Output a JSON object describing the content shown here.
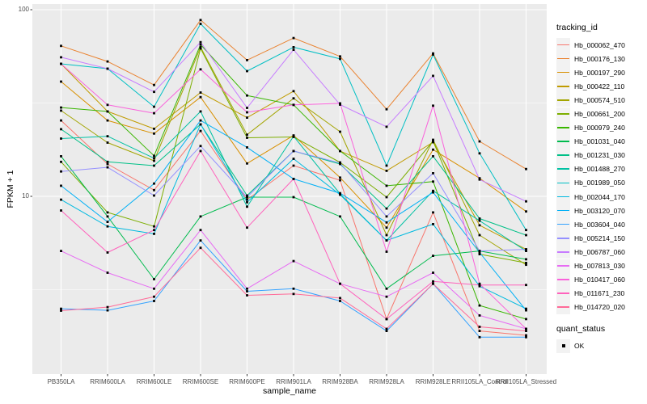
{
  "chart_data": {
    "type": "line",
    "title": "",
    "xlabel": "sample_name",
    "ylabel": "FPKM + 1",
    "y_scale": "log10",
    "ylim": [
      1.12,
      107
    ],
    "y_ticks": [
      100,
      10
    ],
    "y_tick_labels": [
      "100",
      "10"
    ],
    "y_minor_gridlines": [
      31.62,
      3.162
    ],
    "grid": true,
    "legend_position": "right",
    "categories": [
      "PB350LA",
      "RRIM600LA",
      "RRIM600LE",
      "RRIM600SE",
      "RRIM600PE",
      "RRIM901LA",
      "RRIM928BA",
      "RRIM928LA",
      "RRIM928LE",
      "RRII105LA_Control",
      "RRII105LA_Stressed"
    ],
    "series": [
      {
        "name": "Hb_000062_470",
        "color": "#F8766D",
        "values": [
          25.5,
          14.9,
          10.8,
          22.4,
          9.6,
          14.6,
          12.2,
          2.2,
          8.2,
          1.9,
          1.8
        ]
      },
      {
        "name": "Hb_000176_130",
        "color": "#EA8331",
        "values": [
          64.0,
          52.8,
          39.5,
          88.0,
          53.7,
          70.5,
          56.2,
          29.3,
          58.3,
          19.7,
          14.0
        ]
      },
      {
        "name": "Hb_000197_290",
        "color": "#D89000",
        "values": [
          41.2,
          25.5,
          21.7,
          34.0,
          15.0,
          21.2,
          12.6,
          6.8,
          17.8,
          12.5,
          8.3
        ]
      },
      {
        "name": "Hb_000422_110",
        "color": "#C09B00",
        "values": [
          51.3,
          28.5,
          23.0,
          36.0,
          26.4,
          36.6,
          17.5,
          13.7,
          19.5,
          7.0,
          5.2
        ]
      },
      {
        "name": "Hb_000574_510",
        "color": "#A3A500",
        "values": [
          28.8,
          19.4,
          15.5,
          63.0,
          21.4,
          33.5,
          22.2,
          6.2,
          20.1,
          6.2,
          4.3
        ]
      },
      {
        "name": "Hb_000661_200",
        "color": "#7CAE00",
        "values": [
          15.3,
          8.2,
          6.9,
          62.0,
          20.6,
          20.8,
          15.2,
          9.9,
          19.8,
          4.9,
          4.4
        ]
      },
      {
        "name": "Hb_000979_240",
        "color": "#39B600",
        "values": [
          29.9,
          28.5,
          16.5,
          65.0,
          34.7,
          30.9,
          17.5,
          11.4,
          12.0,
          2.6,
          2.2
        ]
      },
      {
        "name": "Hb_001031_040",
        "color": "#00BB4E",
        "values": [
          16.4,
          7.8,
          3.6,
          7.8,
          9.9,
          9.9,
          7.8,
          3.2,
          4.8,
          5.1,
          4.6
        ]
      },
      {
        "name": "Hb_001231_030",
        "color": "#00C087",
        "values": [
          22.9,
          15.3,
          14.6,
          24.3,
          10.1,
          17.5,
          14.9,
          8.6,
          16.4,
          7.6,
          6.2
        ]
      },
      {
        "name": "Hb_001488_270",
        "color": "#00C1A3",
        "values": [
          20.4,
          21.0,
          16.0,
          28.5,
          8.8,
          21.0,
          10.3,
          5.8,
          10.7,
          7.4,
          5.1
        ]
      },
      {
        "name": "Hb_001989_050",
        "color": "#00BFC4",
        "values": [
          51.3,
          48.3,
          30.2,
          84.0,
          46.9,
          63.0,
          54.5,
          14.6,
          57.5,
          17.0,
          6.6
        ]
      },
      {
        "name": "Hb_002044_170",
        "color": "#00BAE0",
        "values": [
          9.6,
          6.9,
          6.3,
          24.3,
          9.3,
          15.9,
          10.2,
          5.8,
          7.1,
          3.3,
          2.5
        ]
      },
      {
        "name": "Hb_003120_070",
        "color": "#00B0F6",
        "values": [
          11.4,
          7.3,
          11.7,
          25.5,
          18.3,
          12.4,
          10.4,
          7.25,
          10.5,
          5.0,
          2.45
        ]
      },
      {
        "name": "Hb_003604_040",
        "color": "#35A2FF",
        "values": [
          2.5,
          2.45,
          2.75,
          5.8,
          3.1,
          3.2,
          2.75,
          1.9,
          3.4,
          1.76,
          1.76
        ]
      },
      {
        "name": "Hb_005214_150",
        "color": "#9590FF",
        "values": [
          13.6,
          14.3,
          10.1,
          18.6,
          9.9,
          17.5,
          15.1,
          7.8,
          13.3,
          5.1,
          5.2
        ]
      },
      {
        "name": "Hb_006787_060",
        "color": "#C77CFF",
        "values": [
          55.6,
          48.3,
          36.3,
          67.0,
          29.8,
          61.0,
          31.0,
          23.6,
          44.2,
          12.3,
          9.4
        ]
      },
      {
        "name": "Hb_007813_030",
        "color": "#E76BF3",
        "values": [
          5.1,
          3.9,
          3.2,
          6.6,
          3.2,
          4.5,
          3.4,
          2.9,
          3.9,
          2.3,
          1.95
        ]
      },
      {
        "name": "Hb_010417_060",
        "color": "#FA62DB",
        "values": [
          51.3,
          30.9,
          27.9,
          47.9,
          28.2,
          30.9,
          31.5,
          5.05,
          30.6,
          3.4,
          1.95
        ]
      },
      {
        "name": "Hb_011671_230",
        "color": "#FF62BC",
        "values": [
          8.4,
          5.0,
          6.6,
          17.5,
          6.8,
          12.4,
          3.4,
          2.2,
          3.5,
          3.35,
          3.35
        ]
      },
      {
        "name": "Hb_014720_020",
        "color": "#FF6A98",
        "values": [
          2.44,
          2.55,
          2.9,
          5.3,
          2.95,
          3.0,
          2.85,
          1.95,
          3.4,
          2.0,
          1.9
        ]
      }
    ],
    "legend": {
      "title": "tracking_id"
    },
    "quant_legend": {
      "title": "quant_status",
      "items": [
        {
          "label": "OK",
          "symbol": "black-square"
        }
      ]
    },
    "style": {
      "panel_bg": "#EBEBEB",
      "gridline_color": "#FFFFFF",
      "point_color": "#000000",
      "tick_text_color": "#4D4D4D",
      "legend_key_bg": "#F2F2F2"
    }
  }
}
